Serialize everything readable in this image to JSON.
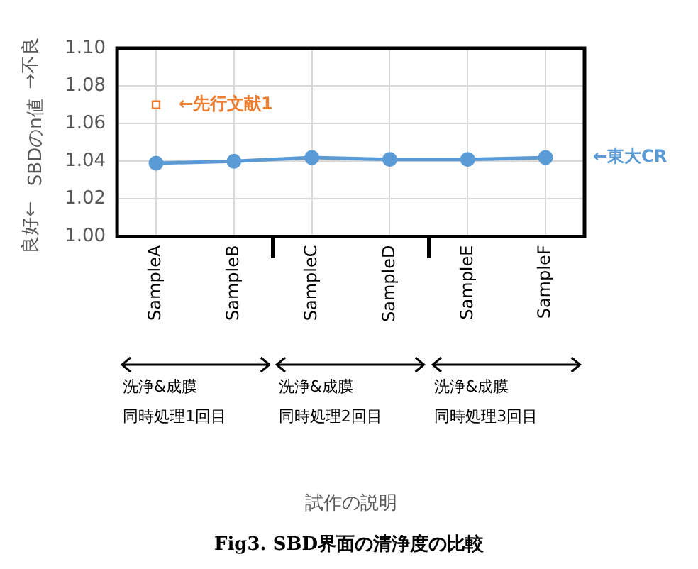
{
  "chart_data": {
    "type": "line",
    "title": "Fig3. SBD界面の清浄度の比較",
    "ylabel": "SBDのn値",
    "categories": [
      "SampleA",
      "SampleB",
      "SampleC",
      "SampleD",
      "SampleE",
      "SampleF"
    ],
    "series": [
      {
        "name": "←東大CR",
        "color": "#5b9bd5",
        "marker": "circle",
        "values": [
          1.039,
          1.04,
          1.042,
          1.041,
          1.041,
          1.042
        ]
      },
      {
        "name": "←先行文献1",
        "type": "scatter",
        "color": "#ed7d31",
        "marker": "square",
        "x": [
          "SampleA"
        ],
        "values": [
          1.07
        ]
      }
    ],
    "ylim": [
      1.0,
      1.1
    ],
    "yticks": [
      {
        "value": 1.0,
        "label": "1.00"
      },
      {
        "value": 1.02,
        "label": "1.02"
      },
      {
        "value": 1.04,
        "label": "1.04"
      },
      {
        "value": 1.06,
        "label": "1.06"
      },
      {
        "value": 1.08,
        "label": "1.08"
      },
      {
        "value": 1.1,
        "label": "1.10"
      }
    ],
    "grid": true,
    "legend": false,
    "annotations": [
      "→不良",
      "良好←",
      "試作の説明",
      "洗浄&成膜",
      "同時処理1回目",
      "洗浄&成膜",
      "同時処理2回目",
      "洗浄&成膜",
      "同時処理3回目"
    ]
  }
}
